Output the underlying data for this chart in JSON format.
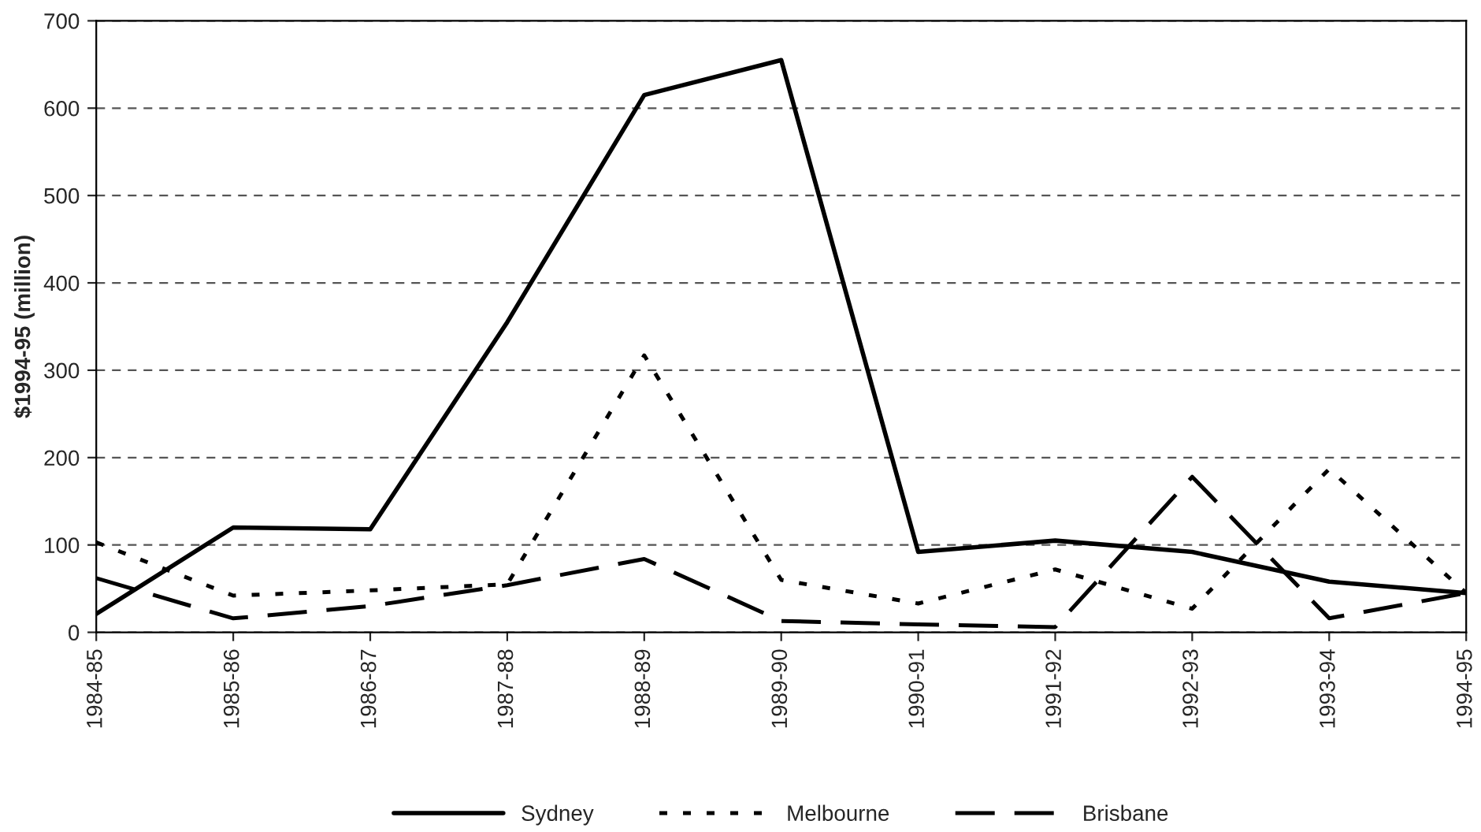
{
  "chart_data": {
    "type": "line",
    "ylabel": "$1994-95 (million)",
    "categories": [
      "1984-85",
      "1985-86",
      "1986-87",
      "1987-88",
      "1988-89",
      "1989-90",
      "1990-91",
      "1991-92",
      "1992-93",
      "1993-94",
      "1994-95"
    ],
    "series": [
      {
        "name": "Sydney",
        "color": "#000000",
        "line_style": "solid",
        "values": [
          21,
          120,
          118,
          355,
          615,
          655,
          92,
          105,
          92,
          58,
          45
        ]
      },
      {
        "name": "Melbourne",
        "color": "#000000",
        "line_style": "dotted",
        "values": [
          103,
          42,
          48,
          55,
          317,
          60,
          33,
          72,
          27,
          187,
          45
        ]
      },
      {
        "name": "Brisbane",
        "color": "#000000",
        "line_style": "dashed",
        "values": [
          62,
          16,
          30,
          54,
          84,
          13,
          9,
          6,
          178,
          16,
          45
        ]
      }
    ],
    "ylim": [
      0,
      700
    ],
    "yticks": [
      0,
      100,
      200,
      300,
      400,
      500,
      600,
      700
    ],
    "grid": "y",
    "legend": "bottom",
    "marker": "none"
  }
}
